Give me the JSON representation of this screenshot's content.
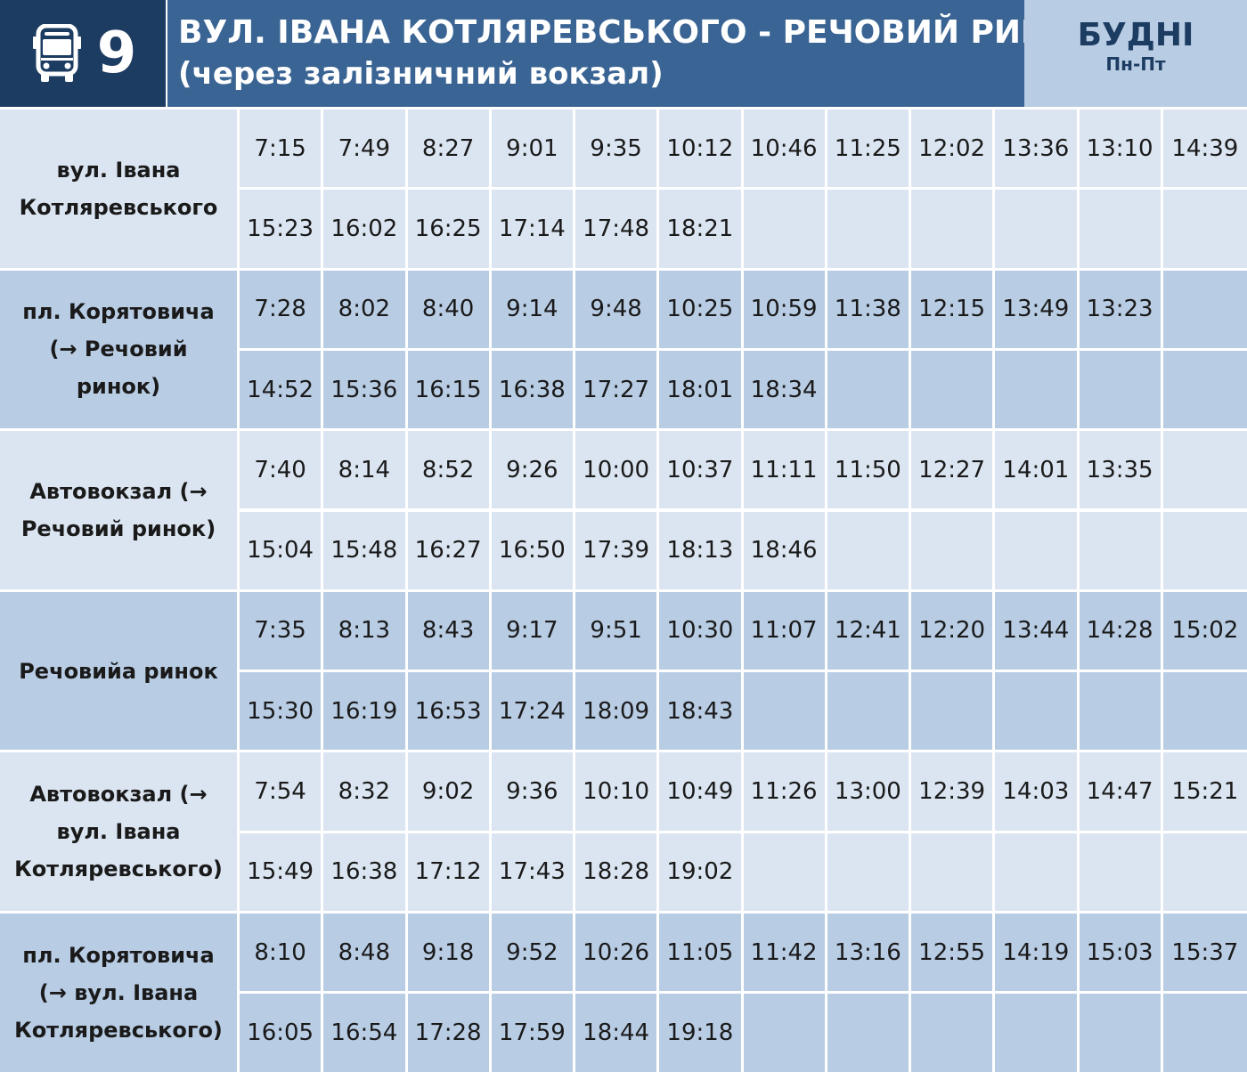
{
  "header": {
    "route_number": "9",
    "route_icon": "bus-icon",
    "title": "ВУЛ. ІВАНА КОТЛЯРЕВСЬКОГО - РЕЧОВИЙ РИНОК",
    "subtitle": "(через залізничний вокзал)",
    "days_label": "БУДНІ",
    "days_range": "Пн-Пт"
  },
  "colors": {
    "route_box": "#1d3c62",
    "title_box": "#3a6494",
    "days_box": "#b8cce4",
    "row_light": "#dbe5f1",
    "row_dark": "#b8cce4"
  },
  "stops": [
    {
      "name": "вул. Івана Котляревського",
      "shade": "light",
      "times": [
        [
          "7:15",
          "7:49",
          "8:27",
          "9:01",
          "9:35",
          "10:12",
          "10:46",
          "11:25",
          "12:02",
          "13:36",
          "13:10",
          "14:39"
        ],
        [
          "15:23",
          "16:02",
          "16:25",
          "17:14",
          "17:48",
          "18:21",
          "",
          "",
          "",
          "",
          "",
          ""
        ]
      ]
    },
    {
      "name": "пл. Корятовича (→ Речовий ринок)",
      "shade": "dark",
      "times": [
        [
          "7:28",
          "8:02",
          "8:40",
          "9:14",
          "9:48",
          "10:25",
          "10:59",
          "11:38",
          "12:15",
          "13:49",
          "13:23",
          ""
        ],
        [
          "14:52",
          "15:36",
          "16:15",
          "16:38",
          "17:27",
          "18:01",
          "18:34",
          "",
          "",
          "",
          "",
          ""
        ]
      ]
    },
    {
      "name": "Автовокзал (→ Речовий ринок)",
      "shade": "light",
      "times": [
        [
          "7:40",
          "8:14",
          "8:52",
          "9:26",
          "10:00",
          "10:37",
          "11:11",
          "11:50",
          "12:27",
          "14:01",
          "13:35",
          ""
        ],
        [
          "15:04",
          "15:48",
          "16:27",
          "16:50",
          "17:39",
          "18:13",
          "18:46",
          "",
          "",
          "",
          "",
          ""
        ]
      ]
    },
    {
      "name": "Речовийа ринок",
      "shade": "dark",
      "times": [
        [
          "7:35",
          "8:13",
          "8:43",
          "9:17",
          "9:51",
          "10:30",
          "11:07",
          "12:41",
          "12:20",
          "13:44",
          "14:28",
          "15:02"
        ],
        [
          "15:30",
          "16:19",
          "16:53",
          "17:24",
          "18:09",
          "18:43",
          "",
          "",
          "",
          "",
          "",
          ""
        ]
      ]
    },
    {
      "name": "Автовокзал (→ вул. Івана Котляревського)",
      "shade": "light",
      "times": [
        [
          "7:54",
          "8:32",
          "9:02",
          "9:36",
          "10:10",
          "10:49",
          "11:26",
          "13:00",
          "12:39",
          "14:03",
          "14:47",
          "15:21"
        ],
        [
          "15:49",
          "16:38",
          "17:12",
          "17:43",
          "18:28",
          "19:02",
          "",
          "",
          "",
          "",
          "",
          ""
        ]
      ]
    },
    {
      "name": "пл. Корятовича (→ вул. Івана Котляревського)",
      "shade": "dark",
      "times": [
        [
          "8:10",
          "8:48",
          "9:18",
          "9:52",
          "10:26",
          "11:05",
          "11:42",
          "13:16",
          "12:55",
          "14:19",
          "15:03",
          "15:37"
        ],
        [
          "16:05",
          "16:54",
          "17:28",
          "17:59",
          "18:44",
          "19:18",
          "",
          "",
          "",
          "",
          "",
          ""
        ]
      ]
    }
  ]
}
